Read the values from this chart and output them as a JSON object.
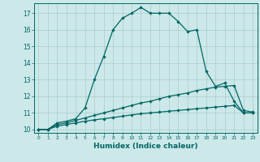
{
  "title": "",
  "xlabel": "Humidex (Indice chaleur)",
  "bg_color": "#cce8e8",
  "grid_color": "#aacccc",
  "line_color": "#006666",
  "xlim": [
    -0.5,
    23.5
  ],
  "ylim": [
    9.8,
    17.6
  ],
  "yticks": [
    10,
    11,
    12,
    13,
    14,
    15,
    16,
    17
  ],
  "xticks": [
    0,
    1,
    2,
    3,
    4,
    5,
    6,
    7,
    8,
    9,
    10,
    11,
    12,
    13,
    14,
    15,
    16,
    17,
    18,
    19,
    20,
    21,
    22,
    23
  ],
  "series1_x": [
    0,
    1,
    2,
    3,
    4,
    5,
    6,
    7,
    8,
    9,
    10,
    11,
    12,
    13,
    14,
    15,
    16,
    17,
    18,
    19,
    20,
    21,
    22,
    23
  ],
  "series1_y": [
    10,
    10,
    10.4,
    10.5,
    10.65,
    11.3,
    13.0,
    14.4,
    16.0,
    16.7,
    17.0,
    17.35,
    17.0,
    17.0,
    17.0,
    16.5,
    15.9,
    16.0,
    13.5,
    12.6,
    12.8,
    11.7,
    11.0,
    11.0
  ],
  "series2_x": [
    0,
    1,
    2,
    3,
    4,
    5,
    6,
    7,
    8,
    9,
    10,
    11,
    12,
    13,
    14,
    15,
    16,
    17,
    18,
    19,
    20,
    21,
    22,
    23
  ],
  "series2_y": [
    10,
    10,
    10.3,
    10.4,
    10.55,
    10.7,
    10.85,
    11.0,
    11.15,
    11.3,
    11.45,
    11.6,
    11.7,
    11.85,
    12.0,
    12.1,
    12.2,
    12.35,
    12.45,
    12.55,
    12.6,
    12.65,
    11.15,
    11.05
  ],
  "series3_x": [
    0,
    1,
    2,
    3,
    4,
    5,
    6,
    7,
    8,
    9,
    10,
    11,
    12,
    13,
    14,
    15,
    16,
    17,
    18,
    19,
    20,
    21,
    22,
    23
  ],
  "series3_y": [
    10,
    10,
    10.2,
    10.3,
    10.4,
    10.5,
    10.58,
    10.65,
    10.72,
    10.8,
    10.88,
    10.95,
    11.0,
    11.05,
    11.1,
    11.15,
    11.2,
    11.25,
    11.3,
    11.35,
    11.4,
    11.45,
    11.0,
    11.0
  ]
}
